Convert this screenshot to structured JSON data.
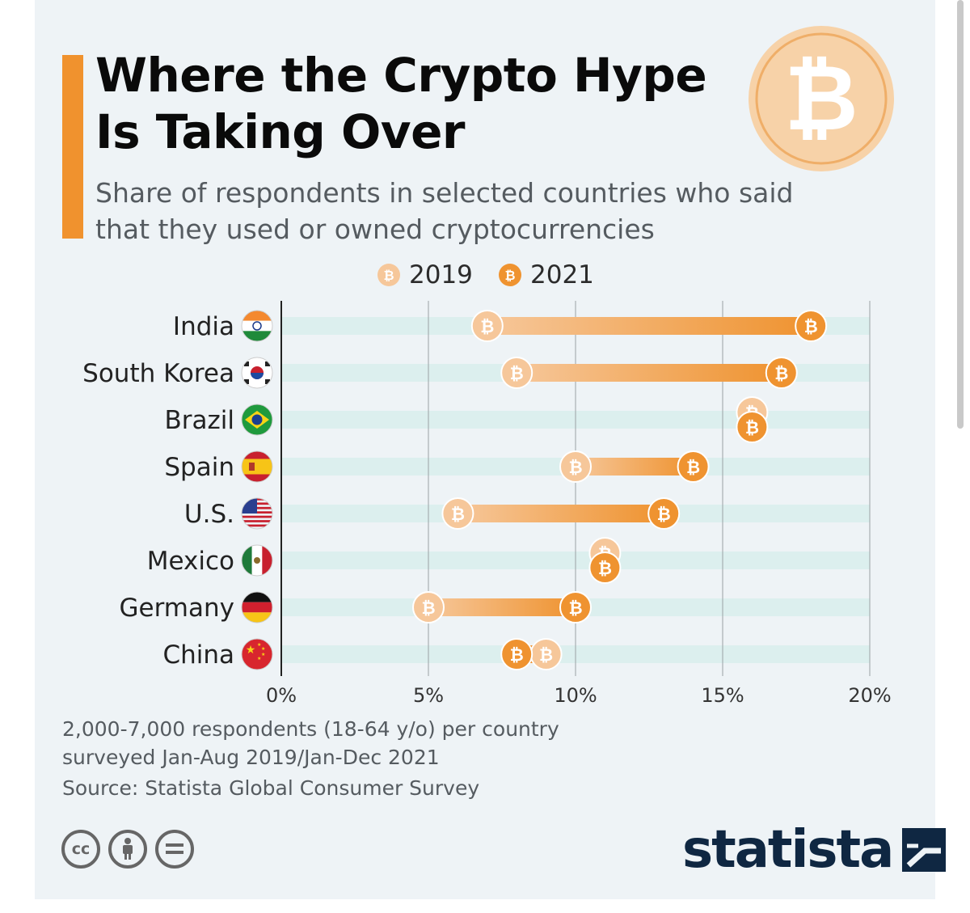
{
  "title": "Where the Crypto Hype Is Taking Over",
  "subtitle": "Share of respondents in selected countries who said that they used or owned cryptocurrencies",
  "legend": {
    "y2019": "2019",
    "y2021": "2021"
  },
  "footnote": "2,000-7,000 respondents (18-64 y/o) per country surveyed Jan-Aug 2019/Jan-Dec 2021",
  "source": "Source: Statista Global Consumer Survey",
  "brand": "statista",
  "icons": [
    "bitcoin-icon",
    "cc-icon",
    "person-icon",
    "equals-icon",
    "statista-logo-icon"
  ],
  "colors": {
    "background": "#eef3f6",
    "accent": "#f0922e",
    "color_2019": "#f6c79a",
    "color_2021": "#ef9330",
    "row_stripe": "#dcefee",
    "brand_navy": "#0f2742"
  },
  "chart_data": {
    "type": "dumbbell",
    "unit": "%",
    "xlim": [
      0,
      20
    ],
    "ticks": [
      "0%",
      "5%",
      "10%",
      "15%",
      "20%"
    ],
    "tick_values": [
      0,
      5,
      10,
      15,
      20
    ],
    "grid": true,
    "legend_position": "top-center",
    "categories": [
      "India",
      "South Korea",
      "Brazil",
      "Spain",
      "U.S.",
      "Mexico",
      "Germany",
      "China"
    ],
    "flags": [
      "india",
      "south-korea",
      "brazil",
      "spain",
      "us",
      "mexico",
      "germany",
      "china"
    ],
    "series": [
      {
        "name": "2019",
        "values": [
          7,
          8,
          16,
          10,
          6,
          11,
          5,
          9
        ]
      },
      {
        "name": "2021",
        "values": [
          18,
          17,
          16,
          14,
          13,
          11,
          10,
          8
        ]
      }
    ]
  }
}
